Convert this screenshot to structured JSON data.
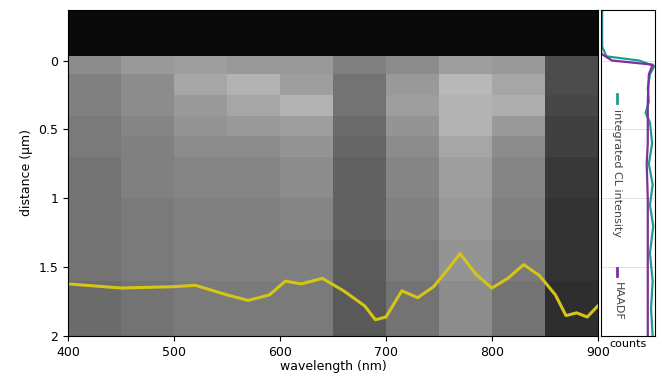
{
  "chart_data": [
    {
      "type": "heatmap",
      "xlabel": "wavelength (nm)",
      "ylabel": "distance (µm)",
      "xlim": [
        400,
        900
      ],
      "ylim": [
        2,
        -0.37
      ],
      "xticks": [
        400,
        500,
        600,
        700,
        800,
        900
      ],
      "yticks": [
        0,
        0.5,
        1,
        1.5,
        2
      ],
      "x_edges": [
        400,
        450,
        500,
        550,
        600,
        650,
        700,
        750,
        800,
        850,
        900
      ],
      "y_edges": [
        -0.37,
        -0.03,
        0.1,
        0.25,
        0.4,
        0.55,
        0.7,
        1.0,
        1.3,
        1.6,
        2.0
      ],
      "cells": [
        [
          0.04,
          0.04,
          0.04,
          0.04,
          0.04,
          0.04,
          0.04,
          0.04,
          0.04,
          0.04
        ],
        [
          0.55,
          0.6,
          0.62,
          0.6,
          0.6,
          0.5,
          0.55,
          0.62,
          0.6,
          0.3
        ],
        [
          0.5,
          0.55,
          0.65,
          0.7,
          0.62,
          0.45,
          0.6,
          0.72,
          0.65,
          0.3
        ],
        [
          0.5,
          0.55,
          0.6,
          0.65,
          0.7,
          0.45,
          0.62,
          0.7,
          0.68,
          0.28
        ],
        [
          0.48,
          0.52,
          0.58,
          0.6,
          0.62,
          0.42,
          0.58,
          0.7,
          0.6,
          0.25
        ],
        [
          0.48,
          0.5,
          0.55,
          0.55,
          0.58,
          0.4,
          0.55,
          0.65,
          0.55,
          0.25
        ],
        [
          0.45,
          0.5,
          0.52,
          0.52,
          0.55,
          0.38,
          0.52,
          0.62,
          0.52,
          0.22
        ],
        [
          0.45,
          0.48,
          0.5,
          0.5,
          0.52,
          0.38,
          0.5,
          0.6,
          0.5,
          0.2
        ],
        [
          0.45,
          0.48,
          0.5,
          0.5,
          0.5,
          0.36,
          0.48,
          0.58,
          0.48,
          0.2
        ],
        [
          0.42,
          0.45,
          0.48,
          0.48,
          0.48,
          0.35,
          0.45,
          0.55,
          0.45,
          0.18
        ]
      ],
      "cell_range": [
        0,
        1
      ],
      "series": [
        {
          "type": "line",
          "color": "#d4c516",
          "x": [
            400,
            450,
            500,
            520,
            550,
            570,
            590,
            605,
            620,
            640,
            660,
            680,
            690,
            700,
            715,
            730,
            745,
            760,
            770,
            785,
            800,
            815,
            830,
            845,
            860,
            870,
            880,
            890,
            900
          ],
          "values": [
            1.62,
            1.65,
            1.64,
            1.63,
            1.7,
            1.74,
            1.7,
            1.6,
            1.62,
            1.58,
            1.67,
            1.78,
            1.88,
            1.86,
            1.67,
            1.72,
            1.64,
            1.5,
            1.4,
            1.55,
            1.65,
            1.58,
            1.48,
            1.56,
            1.7,
            1.85,
            1.83,
            1.86,
            1.78
          ]
        }
      ]
    },
    {
      "type": "line",
      "xlabel": "counts",
      "xlim": [
        0,
        1
      ],
      "ylim": [
        2,
        -0.37
      ],
      "yticks": [
        0,
        0.5,
        1,
        1.5,
        2
      ],
      "tick_labels": false,
      "grid": true,
      "series": [
        {
          "name": "integrated CL intensity",
          "color": "#1f9e89",
          "y": [
            -0.37,
            -0.1,
            -0.03,
            0.0,
            0.04,
            0.1,
            0.2,
            0.3,
            0.38,
            0.45,
            0.6,
            0.75,
            0.9,
            1.05,
            1.2,
            1.4,
            1.6,
            1.8,
            2.0
          ],
          "values": [
            0.02,
            0.02,
            0.1,
            0.7,
            0.98,
            0.9,
            0.86,
            0.88,
            0.82,
            0.9,
            0.94,
            0.88,
            0.95,
            0.9,
            0.96,
            0.9,
            0.95,
            0.92,
            0.95
          ]
        },
        {
          "name": "HAADF",
          "color": "#7b2fa0",
          "y": [
            -0.37,
            -0.05,
            0.0,
            0.03,
            0.1,
            0.3,
            0.6,
            0.75,
            1.0,
            1.5,
            2.0
          ],
          "values": [
            0.0,
            0.0,
            0.2,
            0.95,
            0.88,
            0.86,
            0.86,
            0.84,
            0.86,
            0.86,
            0.86
          ]
        }
      ]
    }
  ]
}
